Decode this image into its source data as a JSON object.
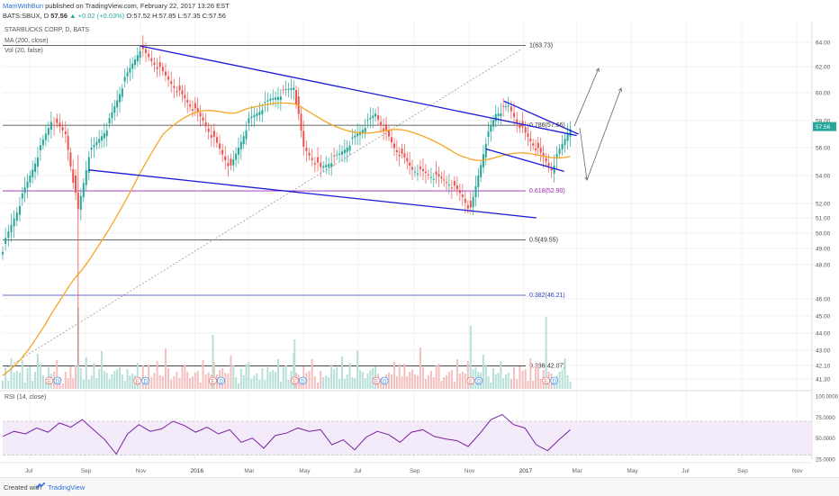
{
  "header": {
    "author": "MamWithBun",
    "published": "published on TradingView.com, February 22, 2017 13:26 EST",
    "symbol": "BATS:SBUX, D",
    "last": "57.56",
    "change": "▲ +0.02 (+0.03%)",
    "ohlc": "O:57.52 H:57.85 L:57.35 C:57.56"
  },
  "legend": {
    "name": "STARBUCKS CORP, D, BATS",
    "ma": "MA (200, close)",
    "vol": "Vol (20, false)",
    "rsi": "RSI (14, close)"
  },
  "footer": {
    "created": "Created with",
    "brand": "TradingView"
  },
  "colors": {
    "candle_up": "#26a69a",
    "candle_down": "#ef5350",
    "ma": "#f5a623",
    "channel": "#1a1ad4",
    "fib_0618": "#9c27b0",
    "fib_0382": "#2e3bbf",
    "rsi": "#7b1fa2",
    "price_tag": "#26a69a"
  },
  "chart_data": [
    {
      "type": "candlestick",
      "title": "STARBUCKS CORP, D, BATS",
      "x_ticks": [
        "Jul",
        "Sep",
        "Nov",
        "2016",
        "Mar",
        "May",
        "Jul",
        "Sep",
        "Nov",
        "2017",
        "Mar",
        "May",
        "Jul",
        "Sep",
        "Nov"
      ],
      "y_ticks": [
        41.3,
        42.1,
        43.0,
        44.0,
        45.0,
        46.0,
        48.0,
        49.0,
        50.0,
        51.0,
        52.0,
        54.0,
        56.0,
        58.0,
        60.0,
        62.0,
        64.0
      ],
      "ylim": [
        41.0,
        64.5
      ],
      "last_price": "57.56",
      "close_path": [
        {
          "date": "2015-06-01",
          "close": 49.0
        },
        {
          "date": "2015-06-20",
          "close": 52.0
        },
        {
          "date": "2015-07-10",
          "close": 55.5
        },
        {
          "date": "2015-07-25",
          "close": 58.0
        },
        {
          "date": "2015-08-10",
          "close": 57.0
        },
        {
          "date": "2015-08-24",
          "close": 51.5
        },
        {
          "date": "2015-09-05",
          "close": 55.5
        },
        {
          "date": "2015-09-25",
          "close": 57.5
        },
        {
          "date": "2015-10-15",
          "close": 61.0
        },
        {
          "date": "2015-11-01",
          "close": 63.5
        },
        {
          "date": "2015-11-20",
          "close": 62.0
        },
        {
          "date": "2015-12-15",
          "close": 60.0
        },
        {
          "date": "2016-01-10",
          "close": 58.0
        },
        {
          "date": "2016-02-10",
          "close": 54.5
        },
        {
          "date": "2016-03-01",
          "close": 58.0
        },
        {
          "date": "2016-03-25",
          "close": 59.5
        },
        {
          "date": "2016-04-20",
          "close": 60.5
        },
        {
          "date": "2016-05-01",
          "close": 56.0
        },
        {
          "date": "2016-05-20",
          "close": 54.5
        },
        {
          "date": "2016-06-10",
          "close": 55.5
        },
        {
          "date": "2016-06-30",
          "close": 57.0
        },
        {
          "date": "2016-07-20",
          "close": 58.5
        },
        {
          "date": "2016-08-10",
          "close": 56.0
        },
        {
          "date": "2016-08-30",
          "close": 54.5
        },
        {
          "date": "2016-09-20",
          "close": 54.0
        },
        {
          "date": "2016-10-10",
          "close": 53.5
        },
        {
          "date": "2016-10-25",
          "close": 52.5
        },
        {
          "date": "2016-11-03",
          "close": 51.5
        },
        {
          "date": "2016-11-20",
          "close": 56.5
        },
        {
          "date": "2016-12-01",
          "close": 58.5
        },
        {
          "date": "2016-12-15",
          "close": 59.0
        },
        {
          "date": "2017-01-03",
          "close": 57.0
        },
        {
          "date": "2017-01-20",
          "close": 55.5
        },
        {
          "date": "2017-02-01",
          "close": 54.5
        },
        {
          "date": "2017-02-22",
          "close": 57.56
        }
      ],
      "fibonacci": [
        {
          "label": "1(63.73)",
          "value": 63.73
        },
        {
          "label": "0.786(57.66)",
          "value": 57.66
        },
        {
          "label": "0.618(52.90)",
          "value": 52.9
        },
        {
          "label": "0.5(49.55)",
          "value": 49.55
        },
        {
          "label": "0.382(46.21)",
          "value": 46.21
        },
        {
          "label": "0.236(42.07)",
          "value": 42.07
        }
      ],
      "earnings_dates": [
        "2015-07-23",
        "2015-10-29",
        "2016-01-21",
        "2016-04-21",
        "2016-07-21",
        "2016-11-03",
        "2017-01-26"
      ],
      "earnings_icons": [
        "E",
        "D"
      ]
    },
    {
      "type": "line",
      "title": "RSI (14, close)",
      "y_ticks": [
        "100.0000",
        "75.0000",
        "50.0000",
        "25.0000"
      ],
      "ylim": [
        25,
        100
      ],
      "overbought": 70,
      "oversold": 30,
      "series": [
        {
          "name": "RSI (14, close)",
          "values": [
            52,
            58,
            55,
            62,
            57,
            68,
            63,
            72,
            60,
            48,
            31,
            55,
            66,
            58,
            61,
            70,
            65,
            57,
            63,
            55,
            60,
            45,
            50,
            38,
            53,
            56,
            62,
            58,
            60,
            42,
            48,
            36,
            51,
            58,
            54,
            45,
            57,
            60,
            52,
            49,
            47,
            40,
            55,
            72,
            78,
            66,
            62,
            42,
            35,
            48,
            60
          ]
        }
      ]
    }
  ]
}
